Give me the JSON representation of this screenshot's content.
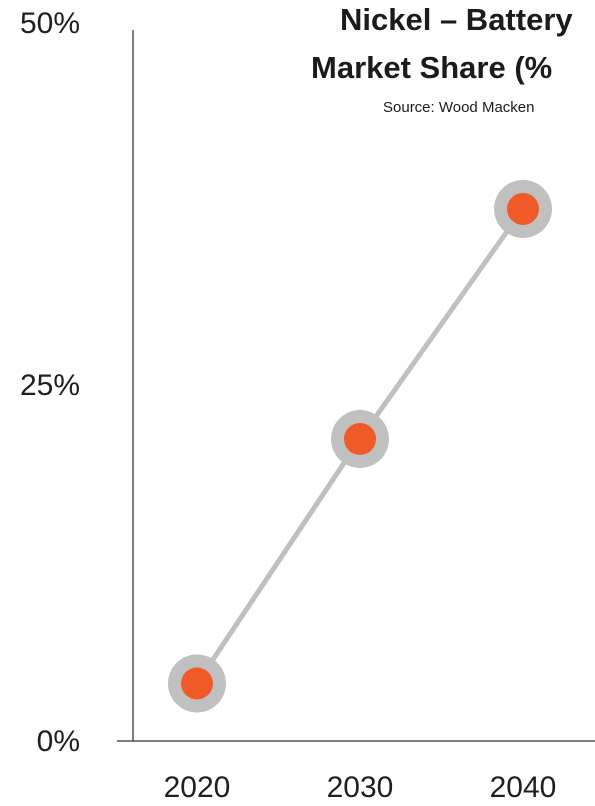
{
  "chart_data": {
    "type": "line",
    "title_line1": "Nickel – Battery",
    "title_line2": "Market Share (%",
    "source": "Source: Wood Macken",
    "categories": [
      "2020",
      "2030",
      "2040"
    ],
    "series": [
      {
        "values": [
          4,
          21,
          37
        ]
      }
    ],
    "ylim": [
      0,
      50
    ],
    "yticks": [
      "0%",
      "25%",
      "50%"
    ],
    "grid": false,
    "colors": {
      "line": "#c0c0c0",
      "marker_fill": "#f05a28",
      "marker_ring": "#c0c0c0",
      "axis": "#555555"
    }
  }
}
